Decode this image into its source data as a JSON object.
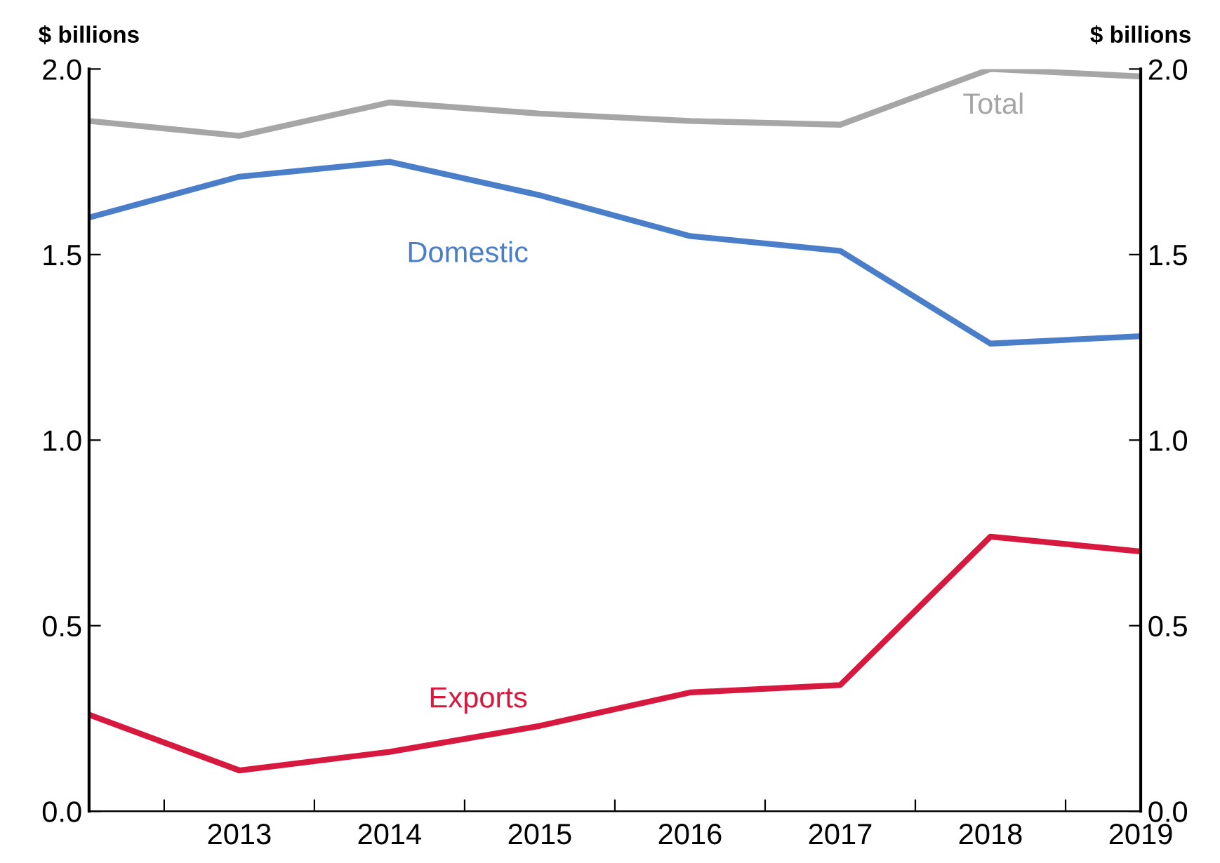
{
  "chart_data": {
    "type": "line",
    "ylabel": "$ billions",
    "y2label": "$ billions",
    "x": [
      2012,
      2013,
      2014,
      2015,
      2016,
      2017,
      2018,
      2019
    ],
    "series": [
      {
        "name": "Total",
        "color": "#a6a6a6",
        "values": [
          1.86,
          1.82,
          1.91,
          1.88,
          1.86,
          1.85,
          2.0,
          1.98
        ]
      },
      {
        "name": "Domestic",
        "color": "#4a7ec8",
        "values": [
          1.6,
          1.71,
          1.75,
          1.66,
          1.55,
          1.51,
          1.26,
          1.28
        ]
      },
      {
        "name": "Exports",
        "color": "#d7193f",
        "values": [
          0.26,
          0.11,
          0.16,
          0.23,
          0.32,
          0.34,
          0.74,
          0.7
        ]
      }
    ],
    "xlim": [
      2012,
      2019
    ],
    "xticks": [
      {
        "value": 2012.5,
        "label": null
      },
      2013,
      {
        "value": 2013.5,
        "label": null
      },
      2014,
      {
        "value": 2014.5,
        "label": null
      },
      2015,
      {
        "value": 2015.5,
        "label": null
      },
      2016,
      {
        "value": 2016.5,
        "label": null
      },
      2017,
      {
        "value": 2017.5,
        "label": null
      },
      2018,
      {
        "value": 2018.5,
        "label": null
      },
      2019
    ],
    "ylim": [
      0,
      2
    ],
    "yticks": [
      {
        "value": 0,
        "label": "0.0"
      },
      {
        "value": 0.5,
        "label": "0.5"
      },
      {
        "value": 1,
        "label": "1.0"
      },
      {
        "value": 1.5,
        "label": "1.5"
      },
      {
        "value": 2,
        "label": "2.0"
      }
    ],
    "y2lim": [
      0,
      2
    ],
    "y2ticks": [
      {
        "value": 0,
        "label": "0.0"
      },
      {
        "value": 0.5,
        "label": "0.5"
      },
      {
        "value": 1,
        "label": "1.0"
      },
      {
        "value": 1.5,
        "label": "1.5"
      },
      {
        "value": 2,
        "label": "2.0"
      }
    ],
    "grid": false,
    "legend": false,
    "marker": "none",
    "line_style": "solid"
  }
}
